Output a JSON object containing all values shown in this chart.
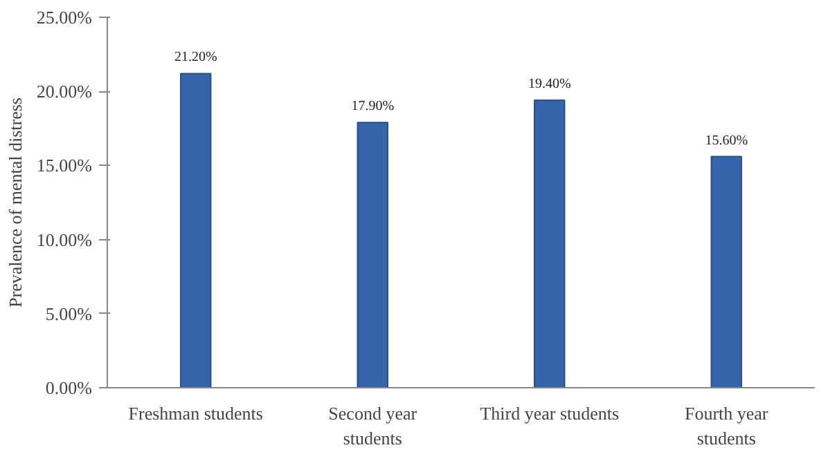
{
  "chart_data": {
    "type": "bar",
    "ylabel": "Prevalence of mental distress",
    "categories": [
      "Freshman students",
      "Second year\nstudents",
      "Third year students",
      "Fourth year\nstudents"
    ],
    "values": [
      21.2,
      17.9,
      19.4,
      15.6
    ],
    "value_labels": [
      "21.20%",
      "17.90%",
      "19.40%",
      "15.60%"
    ],
    "color": "#3565a8",
    "ylim": [
      0,
      25
    ],
    "yticks": [
      {
        "value": 0,
        "label": "0.00%"
      },
      {
        "value": 5,
        "label": "5.00%"
      },
      {
        "value": 10,
        "label": "10.00%"
      },
      {
        "value": 15,
        "label": "15.00%"
      },
      {
        "value": 20,
        "label": "20.00%"
      },
      {
        "value": 25,
        "label": "25.00%"
      }
    ],
    "grid": false
  }
}
